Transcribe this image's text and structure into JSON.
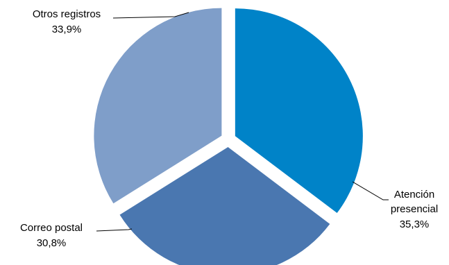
{
  "chart_data": {
    "type": "pie",
    "title": "",
    "exploded": true,
    "start_angle_deg": 90,
    "direction": "clockwise",
    "slices": [
      {
        "name_lines": [
          "Atención",
          "presencial"
        ],
        "value": 35.3,
        "label": "35,3%",
        "color": "#0083C8"
      },
      {
        "name_lines": [
          "Correo postal"
        ],
        "value": 30.8,
        "label": "30,8%",
        "color": "#4A77B0"
      },
      {
        "name_lines": [
          "Otros registros"
        ],
        "value": 33.9,
        "label": "33,9%",
        "color": "#7F9EC9"
      }
    ]
  }
}
